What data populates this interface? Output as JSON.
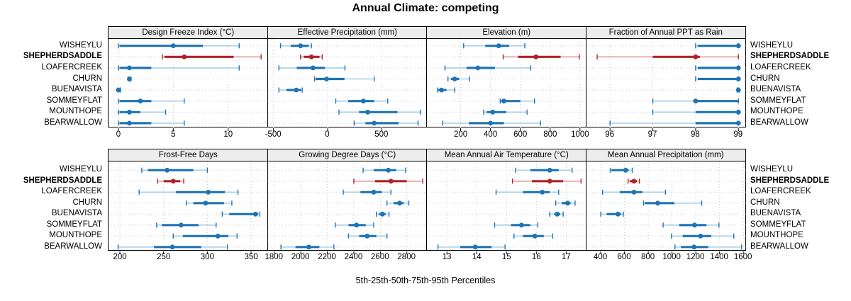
{
  "chart_data": {
    "type": "dotplot-intervals",
    "title": "Annual Climate: competing",
    "xlabel": "5th-25th-50th-75th-95th Percentiles",
    "percentile_order": [
      "5th",
      "25th",
      "50th",
      "75th",
      "95th"
    ],
    "sites": [
      "WISHEYLU",
      "SHEPHERDSADDLE",
      "LOAFERCREEK",
      "CHURN",
      "BUENAVISTA",
      "SOMMEYFLAT",
      "MOUNTHOPE",
      "BEARWALLOW"
    ],
    "highlight_site": "SHEPHERDSADDLE",
    "legend_position": "none",
    "grid": "dotted",
    "colors": {
      "blue_dark": "#1f74b4",
      "blue_light": "#a9cfe4",
      "red_dark": "#b2222b",
      "red_light": "#dc9f9f",
      "grid_line": "#c9c9c9",
      "strip_bg": "#ededed",
      "border": "#000000"
    },
    "panels": [
      {
        "title": "Design Freeze Index (°C)",
        "xlim": [
          -0.9,
          13.6
        ],
        "ticks": [
          0,
          5,
          10
        ],
        "series": [
          [
            0,
            0.1,
            5,
            7.7,
            11
          ],
          [
            4,
            4.2,
            6,
            10.5,
            13
          ],
          [
            0,
            0.1,
            1,
            3,
            11
          ],
          [
            0.9,
            0.95,
            1,
            1.05,
            1.15
          ],
          [
            0,
            0,
            0,
            0.1,
            0.2
          ],
          [
            0,
            0.1,
            2,
            3,
            6
          ],
          [
            0,
            0.1,
            1,
            2,
            4.3
          ],
          [
            0,
            0.1,
            1,
            3,
            6
          ]
        ]
      },
      {
        "title": "Effective Precipitation (mm)",
        "xlim": [
          -550,
          920
        ],
        "ticks": [
          -500,
          0,
          500
        ],
        "series": [
          [
            -435,
            -340,
            -250,
            -175,
            -150
          ],
          [
            -250,
            -220,
            -150,
            -75,
            -50
          ],
          [
            -450,
            -285,
            -135,
            -25,
            160
          ],
          [
            -120,
            -110,
            -10,
            155,
            430
          ],
          [
            -450,
            -380,
            -290,
            -245,
            -235
          ],
          [
            75,
            190,
            330,
            430,
            555
          ],
          [
            105,
            290,
            370,
            645,
            855
          ],
          [
            245,
            350,
            430,
            655,
            835
          ]
        ]
      },
      {
        "title": "Elevation (m)",
        "xlim": [
          -26,
          1041
        ],
        "ticks": [
          200,
          400,
          600,
          800,
          1000
        ],
        "series": [
          [
            220,
            365,
            455,
            525,
            630
          ],
          [
            485,
            585,
            705,
            870,
            995
          ],
          [
            95,
            240,
            315,
            430,
            670
          ],
          [
            115,
            135,
            160,
            190,
            260
          ],
          [
            45,
            50,
            72,
            105,
            160
          ],
          [
            465,
            470,
            490,
            600,
            695
          ],
          [
            355,
            375,
            415,
            505,
            645
          ],
          [
            80,
            255,
            400,
            490,
            735
          ]
        ]
      },
      {
        "title": "Fraction of Annual PPT as Rain",
        "xlim": [
          95.45,
          99.17
        ],
        "ticks": [
          96,
          97,
          98,
          99
        ],
        "series": [
          [
            98,
            98.05,
            99,
            99,
            99
          ],
          [
            95.7,
            97,
            98,
            98.1,
            99
          ],
          [
            98,
            98.05,
            99,
            99,
            99
          ],
          [
            98,
            98.05,
            99,
            99,
            99
          ],
          [
            98.97,
            99,
            99,
            99,
            99.02
          ],
          [
            97,
            98,
            98,
            99,
            99
          ],
          [
            97,
            98,
            99,
            99,
            99
          ],
          [
            96,
            98,
            99,
            99,
            99
          ]
        ]
      },
      {
        "title": "Frost-Free Days",
        "xlim": [
          187,
          369
        ],
        "ticks": [
          200,
          250,
          300,
          350
        ],
        "series": [
          [
            225,
            232,
            254,
            284,
            300
          ],
          [
            243,
            250,
            261,
            269,
            273
          ],
          [
            222,
            264,
            301,
            320,
            335
          ],
          [
            276,
            284,
            298,
            319,
            328
          ],
          [
            317,
            325,
            355,
            358,
            360
          ],
          [
            242,
            248,
            270,
            290,
            310
          ],
          [
            261,
            272,
            312,
            324,
            334
          ],
          [
            198,
            239,
            260,
            293,
            323
          ]
        ]
      },
      {
        "title": "Growing Degree Days (°C)",
        "xlim": [
          1753,
          2954
        ],
        "ticks": [
          1800,
          2000,
          2200,
          2400,
          2600,
          2800
        ],
        "series": [
          [
            2470,
            2550,
            2660,
            2720,
            2790
          ],
          [
            2400,
            2560,
            2680,
            2800,
            2920
          ],
          [
            2320,
            2450,
            2550,
            2610,
            2680
          ],
          [
            2650,
            2700,
            2745,
            2775,
            2815
          ],
          [
            2570,
            2590,
            2615,
            2640,
            2665
          ],
          [
            2260,
            2360,
            2420,
            2490,
            2550
          ],
          [
            2360,
            2440,
            2500,
            2570,
            2650
          ],
          [
            1850,
            1960,
            2060,
            2140,
            2250
          ]
        ]
      },
      {
        "title": "Mean Annual Air Temperature (°C)",
        "xlim": [
          12.33,
          17.67
        ],
        "ticks": [
          13,
          14,
          15,
          16,
          17
        ],
        "series": [
          [
            15.3,
            15.8,
            16.45,
            16.75,
            17.2
          ],
          [
            15.2,
            15.85,
            16.45,
            16.9,
            17.5
          ],
          [
            14.65,
            15.55,
            16.2,
            16.45,
            16.75
          ],
          [
            16.65,
            16.85,
            17.05,
            17.15,
            17.3
          ],
          [
            16.45,
            16.6,
            16.7,
            16.8,
            16.9
          ],
          [
            14.6,
            15.15,
            15.5,
            15.8,
            16.05
          ],
          [
            15.25,
            15.55,
            15.95,
            16.25,
            16.55
          ],
          [
            12.7,
            13.45,
            13.95,
            14.5,
            14.95
          ]
        ]
      },
      {
        "title": "Mean Annual Precipitation (mm)",
        "xlim": [
          280,
          1620
        ],
        "ticks": [
          400,
          600,
          800,
          1000,
          1200,
          1400,
          1600
        ],
        "series": [
          [
            480,
            490,
            610,
            635,
            665
          ],
          [
            630,
            645,
            680,
            705,
            725
          ],
          [
            415,
            560,
            680,
            750,
            945
          ],
          [
            760,
            770,
            880,
            1020,
            1250
          ],
          [
            400,
            450,
            545,
            570,
            590
          ],
          [
            925,
            1060,
            1190,
            1290,
            1395
          ],
          [
            995,
            1090,
            1240,
            1330,
            1520
          ],
          [
            1025,
            1075,
            1185,
            1305,
            1585
          ]
        ]
      }
    ]
  }
}
